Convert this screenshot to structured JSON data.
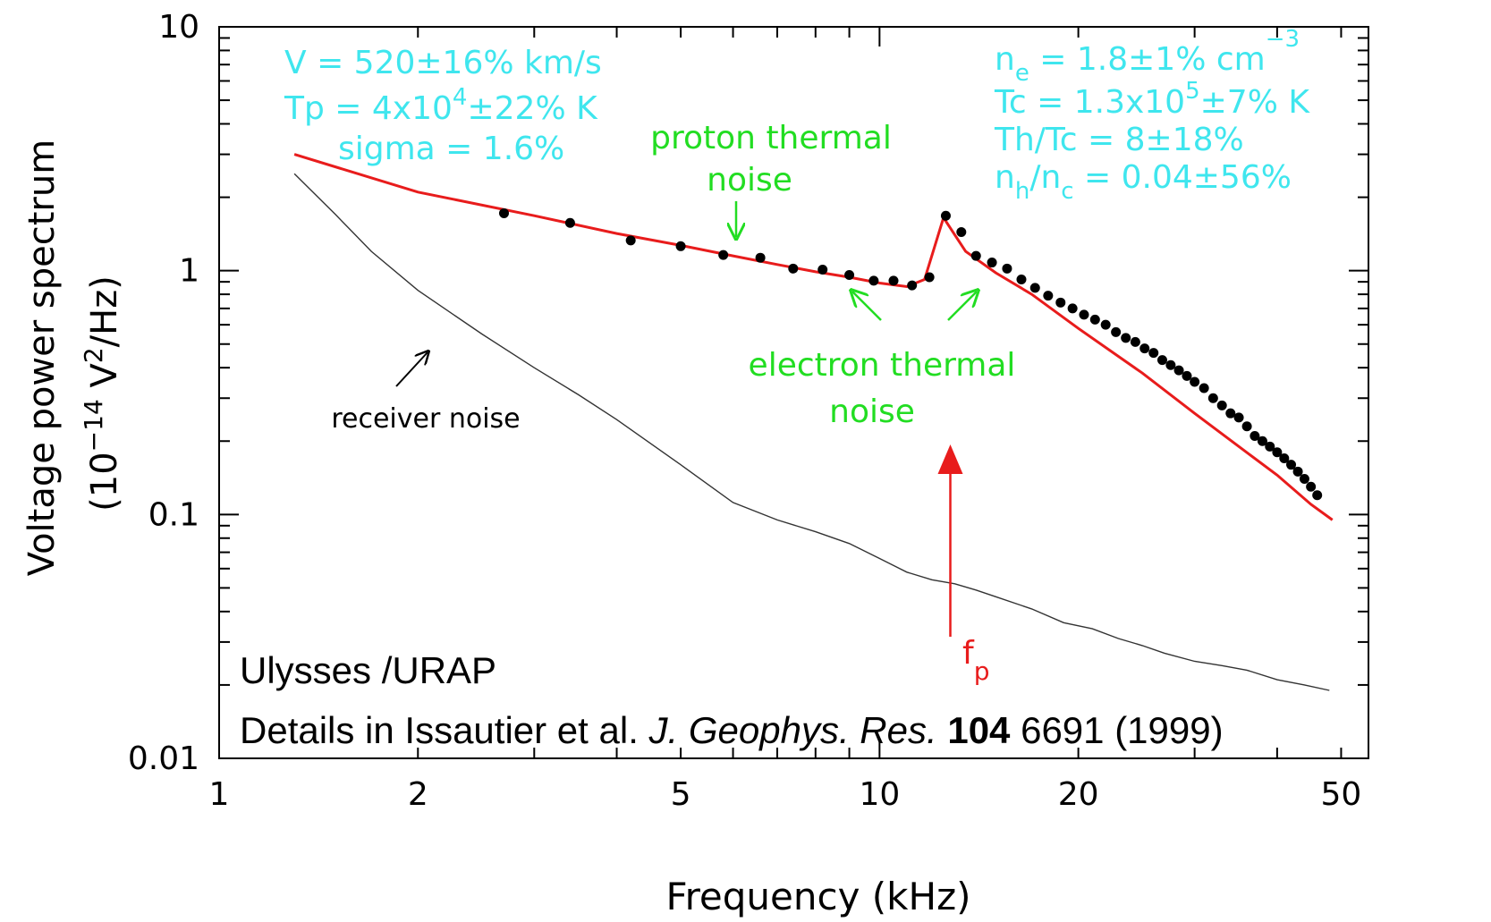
{
  "chart_data": {
    "type": "line",
    "xscale": "log",
    "yscale": "log",
    "xlim": [
      1,
      55
    ],
    "ylim": [
      0.01,
      10
    ],
    "xlabel": "Frequency (kHz)",
    "ylabel_line1": "Voltage power spectrum",
    "ylabel_line2": "(10",
    "ylabel_exp": "−14",
    "ylabel_line2b": " V",
    "ylabel_exp2": "2",
    "ylabel_line2c": "/Hz)",
    "x_ticks": [
      {
        "value": 1,
        "label": "1"
      },
      {
        "value": 2,
        "label": "2"
      },
      {
        "value": 5,
        "label": "5"
      },
      {
        "value": 10,
        "label": "10"
      },
      {
        "value": 20,
        "label": "20"
      },
      {
        "value": 50,
        "label": "50"
      }
    ],
    "y_ticks": [
      {
        "value": 0.01,
        "label": "0.01"
      },
      {
        "value": 0.1,
        "label": "0.1"
      },
      {
        "value": 1,
        "label": "1"
      },
      {
        "value": 10,
        "label": "10"
      }
    ],
    "series": [
      {
        "key": "fit",
        "color": "#e81c1c",
        "style": "line",
        "x": [
          1.3,
          2.0,
          3.0,
          4.0,
          5.0,
          6.0,
          7.0,
          8.0,
          9.0,
          10.0,
          11.0,
          11.7,
          12.5,
          13.5,
          15,
          17,
          20,
          25,
          30,
          35,
          40,
          45,
          48.5
        ],
        "y": [
          3.0,
          2.1,
          1.68,
          1.42,
          1.27,
          1.15,
          1.06,
          0.99,
          0.94,
          0.89,
          0.86,
          0.92,
          1.65,
          1.2,
          0.98,
          0.8,
          0.58,
          0.38,
          0.26,
          0.19,
          0.145,
          0.11,
          0.095
        ]
      },
      {
        "key": "measured",
        "color": "#000000",
        "style": "points",
        "x": [
          2.7,
          3.4,
          4.2,
          5.0,
          5.8,
          6.6,
          7.4,
          8.2,
          9.0,
          9.8,
          10.5,
          11.2,
          11.9,
          12.6,
          13.3,
          14.0,
          14.8,
          15.6,
          16.4,
          17.2,
          18.0,
          18.8,
          19.6,
          20.4,
          21.2,
          22.0,
          22.8,
          23.6,
          24.4,
          25.2,
          26.0,
          26.8,
          27.6,
          28.4,
          29.2,
          30.0,
          31.0,
          32.0,
          33.0,
          34.0,
          35.0,
          36.0,
          37.0,
          38.0,
          39.0,
          40.0,
          41.0,
          42.0,
          43.0,
          44.0,
          45.0,
          46.0
        ],
        "y": [
          1.72,
          1.57,
          1.33,
          1.26,
          1.16,
          1.13,
          1.02,
          1.01,
          0.96,
          0.91,
          0.91,
          0.87,
          0.94,
          1.68,
          1.44,
          1.15,
          1.08,
          1.02,
          0.92,
          0.85,
          0.79,
          0.74,
          0.7,
          0.66,
          0.63,
          0.6,
          0.56,
          0.53,
          0.51,
          0.48,
          0.46,
          0.43,
          0.41,
          0.39,
          0.37,
          0.35,
          0.33,
          0.3,
          0.28,
          0.26,
          0.25,
          0.23,
          0.21,
          0.2,
          0.19,
          0.18,
          0.17,
          0.16,
          0.15,
          0.14,
          0.13,
          0.12
        ]
      },
      {
        "key": "receiver",
        "color": "#333333",
        "style": "thin-line",
        "x": [
          1.3,
          1.5,
          1.7,
          2.0,
          2.5,
          3.0,
          3.5,
          4.0,
          5.0,
          6.0,
          7.0,
          8.0,
          9.0,
          10.0,
          11.0,
          12.0,
          13.0,
          14.0,
          15.0,
          17.0,
          19.0,
          21.0,
          23.0,
          25.0,
          27.0,
          30.0,
          33.0,
          36.0,
          40.0,
          44.0,
          48.0
        ],
        "y": [
          2.5,
          1.7,
          1.2,
          0.83,
          0.55,
          0.4,
          0.31,
          0.245,
          0.16,
          0.112,
          0.095,
          0.085,
          0.076,
          0.066,
          0.058,
          0.054,
          0.052,
          0.049,
          0.046,
          0.041,
          0.036,
          0.034,
          0.031,
          0.029,
          0.027,
          0.025,
          0.024,
          0.023,
          0.021,
          0.02,
          0.019
        ]
      }
    ],
    "annotations": {
      "left_params": {
        "v": "V = 520±16% km/s",
        "tp_a": "Tp = 4x10",
        "tp_exp": "4",
        "tp_b": "±22% K",
        "sigma": "sigma = 1.6%"
      },
      "right_params": {
        "ne_a": "n",
        "ne_sub": "e",
        "ne_b": " = 1.8±1% cm",
        "ne_exp": "−3",
        "tc_a": "Tc = 1.3x10",
        "tc_exp": "5",
        "tc_b": "±7% K",
        "thtc": "Th/Tc = 8±18%",
        "nh_a": "n",
        "nh_sub": "h",
        "nh_b": "/n",
        "nc_sub": "c",
        "nh_c": " = 0.04±56%"
      },
      "proton_line1": "proton thermal",
      "proton_line2": "noise",
      "electron_line1": "electron thermal",
      "electron_line2": "noise",
      "receiver_label": "receiver noise",
      "fp_main": "f",
      "fp_sub": "p",
      "fp_x": 12.8,
      "credit_line1": "Ulysses /URAP",
      "credit_line2_a": "Details in Issautier et al. ",
      "credit_line2_b": "J. Geophys. Res.",
      "credit_line2_c": "104",
      "credit_line2_d": " 6691 (1999)"
    },
    "colors": {
      "fit": "#e81c1c",
      "annotation_cyan": "#3fe6ee",
      "annotation_green": "#22dd22",
      "fp_arrow": "#e81c1c"
    }
  }
}
